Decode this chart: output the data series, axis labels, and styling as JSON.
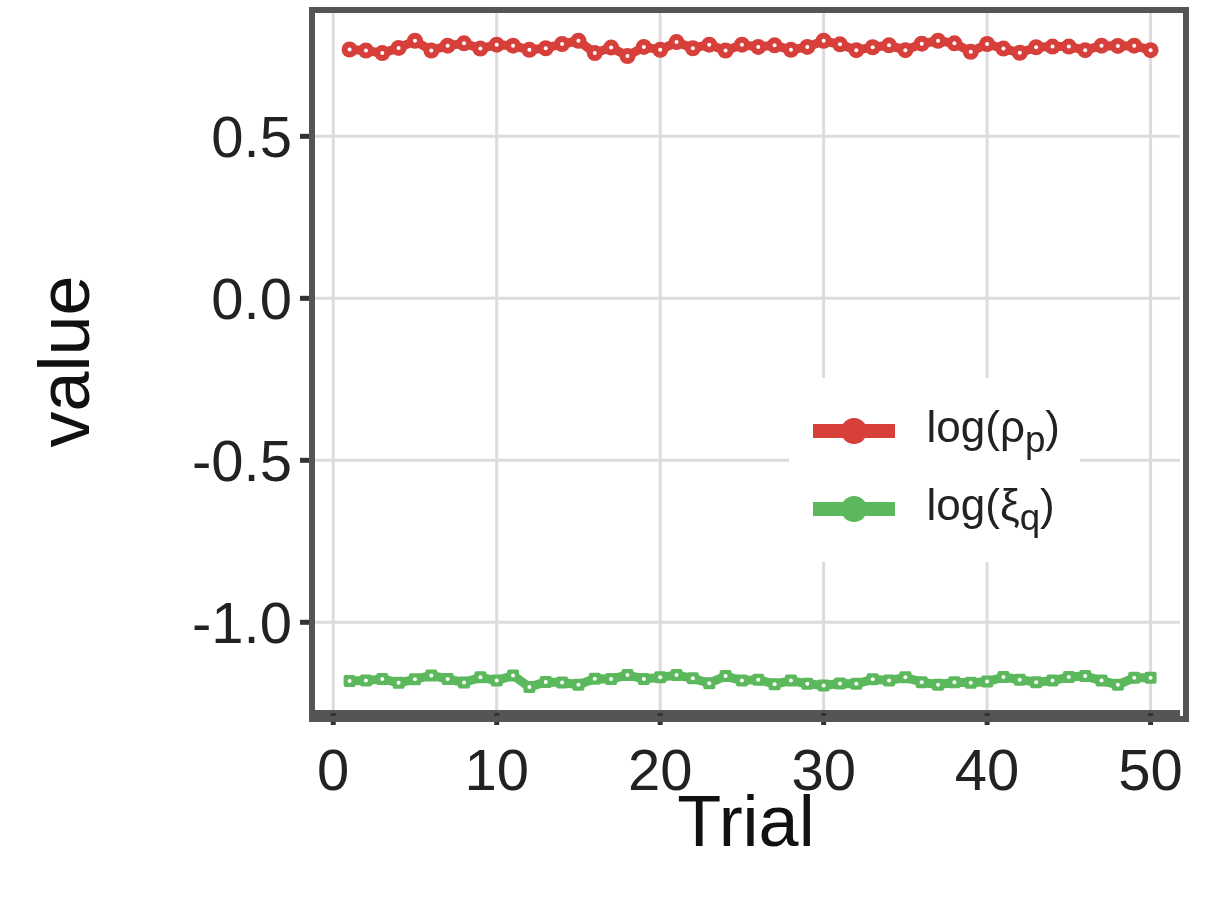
{
  "chart_data": {
    "type": "line",
    "xlabel": "Trial",
    "ylabel": "value",
    "x": [
      1,
      2,
      3,
      4,
      5,
      6,
      7,
      8,
      9,
      10,
      11,
      12,
      13,
      14,
      15,
      16,
      17,
      18,
      19,
      20,
      21,
      22,
      23,
      24,
      25,
      26,
      27,
      28,
      29,
      30,
      31,
      32,
      33,
      34,
      35,
      36,
      37,
      38,
      39,
      40,
      41,
      42,
      43,
      44,
      45,
      46,
      47,
      48,
      49,
      50
    ],
    "series": [
      {
        "name": "log(ρ$_{p}$)",
        "color": "#d7403a",
        "marker": "circle",
        "values": [
          0.768,
          0.765,
          0.757,
          0.773,
          0.795,
          0.765,
          0.78,
          0.787,
          0.771,
          0.783,
          0.78,
          0.767,
          0.772,
          0.785,
          0.795,
          0.757,
          0.774,
          0.748,
          0.776,
          0.767,
          0.791,
          0.772,
          0.783,
          0.765,
          0.783,
          0.776,
          0.781,
          0.767,
          0.776,
          0.795,
          0.784,
          0.766,
          0.775,
          0.781,
          0.766,
          0.786,
          0.795,
          0.787,
          0.761,
          0.785,
          0.771,
          0.758,
          0.775,
          0.777,
          0.777,
          0.766,
          0.78,
          0.779,
          0.78,
          0.766
        ]
      },
      {
        "name": "log(ξ$_{q}$)",
        "color": "#5cb85c",
        "marker": "square",
        "values": [
          -1.181,
          -1.18,
          -1.175,
          -1.187,
          -1.176,
          -1.164,
          -1.175,
          -1.186,
          -1.17,
          -1.18,
          -1.164,
          -1.2,
          -1.184,
          -1.186,
          -1.193,
          -1.174,
          -1.175,
          -1.163,
          -1.175,
          -1.17,
          -1.163,
          -1.173,
          -1.188,
          -1.166,
          -1.18,
          -1.177,
          -1.191,
          -1.18,
          -1.19,
          -1.195,
          -1.189,
          -1.19,
          -1.176,
          -1.18,
          -1.17,
          -1.185,
          -1.193,
          -1.185,
          -1.187,
          -1.183,
          -1.169,
          -1.177,
          -1.185,
          -1.18,
          -1.169,
          -1.166,
          -1.18,
          -1.193,
          -1.171,
          -1.171
        ]
      }
    ],
    "xlim": [
      -1.3,
      51.8
    ],
    "xticks": [
      0,
      10,
      20,
      30,
      40,
      50
    ],
    "ylim": [
      -1.28,
      0.89
    ],
    "yticks": [
      {
        "value": -1,
        "label": "-1.0"
      },
      -0.5,
      {
        "value": 0,
        "label": "0.0"
      },
      0.5
    ],
    "grid": true,
    "legend": "right"
  }
}
